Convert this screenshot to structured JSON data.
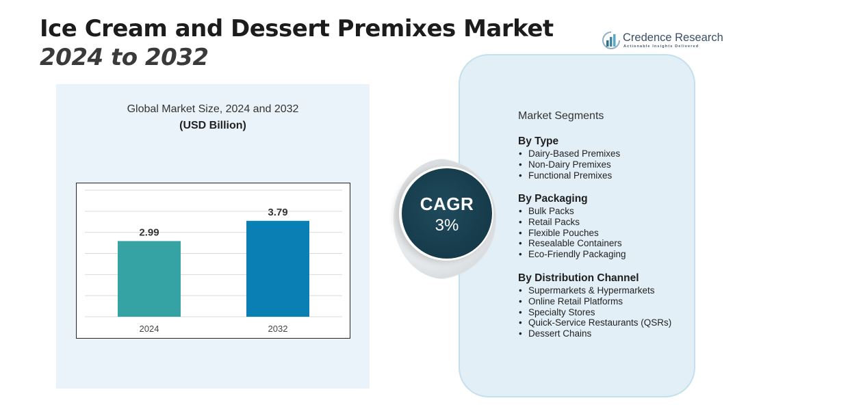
{
  "header": {
    "title": "Ice Cream and Dessert Premixes Market",
    "subtitle": "2024 to 2032"
  },
  "logo": {
    "name": "Credence Research",
    "tagline": "Actionable Insights Delivered"
  },
  "colors": {
    "bar_2024": "#35a3a3",
    "bar_2032": "#0a7fb4",
    "cagr_bg": "#163b4a",
    "panel_bg": "#eaf3f9"
  },
  "chart_data": {
    "type": "bar",
    "title": "Global Market Size, 2024 and 2032",
    "unit_label": "(USD Billion)",
    "categories": [
      "2024",
      "2032"
    ],
    "values": [
      2.99,
      3.79
    ],
    "value_labels": [
      "2.99",
      "3.79"
    ],
    "ylim": [
      0,
      5
    ],
    "grid": true,
    "legend": "none"
  },
  "cagr": {
    "label": "CAGR",
    "value": "3%"
  },
  "segments": {
    "heading": "Market Segments",
    "groups": [
      {
        "title": "By Type",
        "items": [
          "Dairy-Based Premixes",
          "Non-Dairy Premixes",
          "Functional Premixes"
        ]
      },
      {
        "title": "By Packaging",
        "items": [
          "Bulk Packs",
          "Retail Packs",
          "Flexible Pouches",
          "Resealable Containers",
          "Eco-Friendly Packaging"
        ]
      },
      {
        "title": "By Distribution Channel",
        "items": [
          "Supermarkets & Hypermarkets",
          "Online Retail Platforms",
          "Specialty Stores",
          "Quick-Service Restaurants (QSRs)",
          "Dessert Chains"
        ]
      }
    ]
  }
}
